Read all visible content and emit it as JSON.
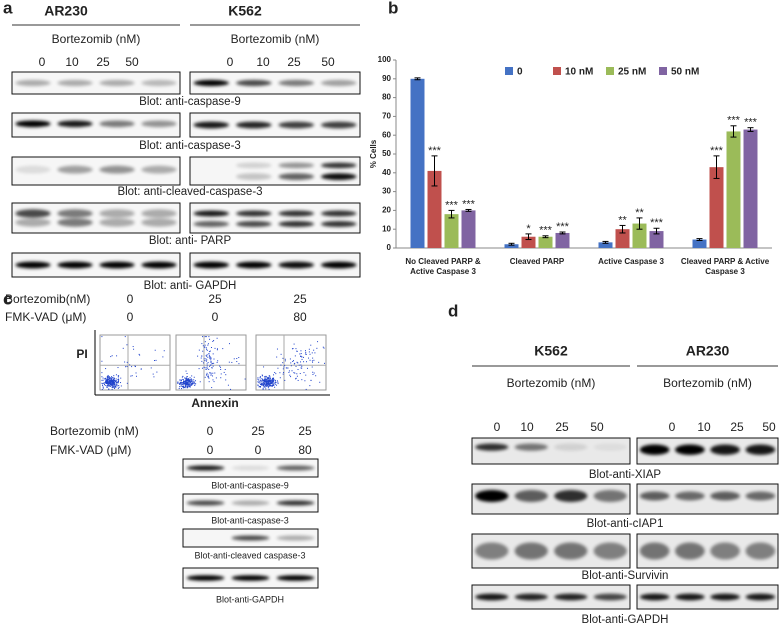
{
  "panel_labels": [
    "a",
    "b",
    "c",
    "d"
  ],
  "panel_a": {
    "cell_lines": [
      "AR230",
      "K562"
    ],
    "treatment": "Bortezomib (nM)",
    "doses": [
      0,
      10,
      25,
      50
    ],
    "blots": [
      "Blot: anti-caspase-9",
      "Blot: anti-caspase-3",
      "Blot: anti-cleaved-caspase-3",
      "Blot: anti- PARP",
      "Blot: anti- GAPDH"
    ]
  },
  "chart_data": {
    "type": "bar",
    "y_label": "% Cells",
    "categories": [
      "No Cleaved PARP & Active Caspase 3",
      "Cleaved PARP",
      "Active Caspase 3",
      "Cleaved PARP & Active Caspase 3"
    ],
    "series": [
      {
        "name": "0",
        "color": "#4472c4",
        "values": [
          90,
          2,
          3,
          4.5
        ],
        "errors": [
          0.5,
          0.5,
          0.5,
          0.5
        ]
      },
      {
        "name": "10 nM",
        "color": "#c0504d",
        "values": [
          41,
          6,
          10,
          43
        ],
        "errors": [
          8,
          1.5,
          2,
          6
        ],
        "significance": [
          "***",
          "*",
          "**",
          "***"
        ]
      },
      {
        "name": "25 nM",
        "color": "#9bbb59",
        "values": [
          18,
          6,
          13,
          62
        ],
        "errors": [
          2,
          0.5,
          3,
          3
        ],
        "significance": [
          "***",
          "***",
          "**",
          "***"
        ]
      },
      {
        "name": "50 nM",
        "color": "#8064a2",
        "values": [
          20,
          8,
          9,
          63
        ],
        "errors": [
          0.5,
          0.5,
          1.5,
          1
        ],
        "significance": [
          "***",
          "***",
          "***",
          "***"
        ]
      }
    ],
    "ylim": [
      0,
      100
    ],
    "yticks": [
      0,
      10,
      20,
      30,
      40,
      50,
      60,
      70,
      80,
      90,
      100
    ],
    "grid": false,
    "legend": "top"
  },
  "panel_c": {
    "flow_conditions": [
      {
        "label": "Bortezomib(nM)",
        "values": [
          0,
          25,
          25
        ]
      },
      {
        "label": "FMK-VAD (μM)",
        "values": [
          0,
          0,
          80
        ]
      }
    ],
    "y_label": "PI",
    "x_label": "Annexin",
    "blot_conditions": [
      {
        "label": "Bortezomib (nM)",
        "values": [
          0,
          25,
          25
        ]
      },
      {
        "label": "FMK-VAD (μM)",
        "values": [
          0,
          0,
          80
        ]
      }
    ],
    "blots": [
      "Blot-anti-caspase-9",
      "Blot-anti-caspase-3",
      "Blot-anti-cleaved  caspase-3",
      "Blot-anti-GAPDH"
    ]
  },
  "panel_d": {
    "cell_lines": [
      "K562",
      "AR230"
    ],
    "treatment": "Bortezomib (nM)",
    "doses": [
      0,
      10,
      25,
      50
    ],
    "blots": [
      "Blot-anti-XIAP",
      "Blot-anti-cIAP1",
      "Blot-anti-Survivin",
      "Blot-anti-GAPDH"
    ]
  }
}
